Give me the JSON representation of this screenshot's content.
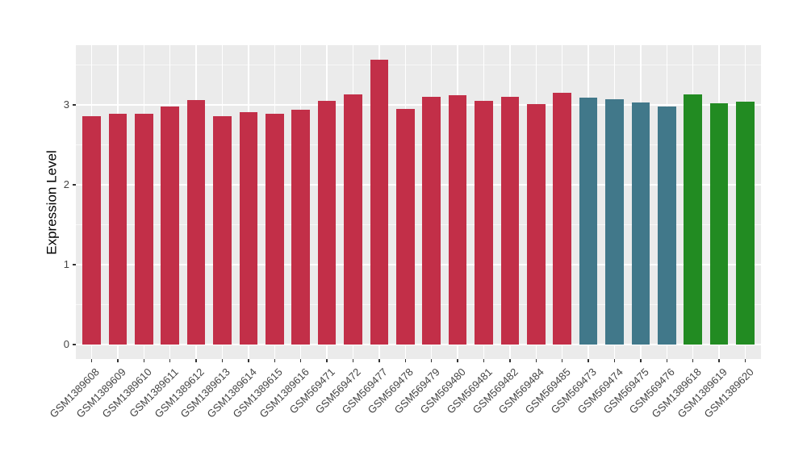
{
  "chart_data": {
    "type": "bar",
    "title": "",
    "xlabel": "",
    "ylabel": "Expression Level",
    "ylim": [
      -0.18,
      3.75
    ],
    "yticks": [
      0,
      1,
      2,
      3
    ],
    "yticks_minor": [
      0.5,
      1.5,
      2.5,
      3.5
    ],
    "grid": "white major gridlines at y ticks and category centers, thin white minor gridlines at 0.5 steps, gray panel",
    "legend": "none",
    "panel_bg": "#EBEBEB",
    "grid_color": "#FFFFFF",
    "axis_text_color": "#444444",
    "axis_title_color": "#000000",
    "categories": [
      "GSM1389608",
      "GSM1389609",
      "GSM1389610",
      "GSM1389611",
      "GSM1389612",
      "GSM1389613",
      "GSM1389614",
      "GSM1389615",
      "GSM1389616",
      "GSM569471",
      "GSM569472",
      "GSM569477",
      "GSM569478",
      "GSM569479",
      "GSM569480",
      "GSM569481",
      "GSM569482",
      "GSM569484",
      "GSM569485",
      "GSM569473",
      "GSM569474",
      "GSM569475",
      "GSM569476",
      "GSM1389618",
      "GSM1389619",
      "GSM1389620"
    ],
    "values": [
      2.86,
      2.89,
      2.89,
      2.98,
      3.06,
      2.86,
      2.91,
      2.89,
      2.94,
      3.05,
      3.13,
      3.57,
      2.95,
      3.1,
      3.12,
      3.05,
      3.1,
      3.01,
      3.15,
      3.09,
      3.07,
      3.03,
      2.98,
      3.13,
      3.02,
      3.04
    ],
    "bar_colors": [
      "#C22F48",
      "#C22F48",
      "#C22F48",
      "#C22F48",
      "#C22F48",
      "#C22F48",
      "#C22F48",
      "#C22F48",
      "#C22F48",
      "#C22F48",
      "#C22F48",
      "#C22F48",
      "#C22F48",
      "#C22F48",
      "#C22F48",
      "#C22F48",
      "#C22F48",
      "#C22F48",
      "#C22F48",
      "#41788A",
      "#41788A",
      "#41788A",
      "#41788A",
      "#228B22",
      "#228B22",
      "#228B22"
    ],
    "color_groups": {
      "crimson": "#C22F48",
      "teal": "#41788A",
      "green": "#228B22"
    }
  }
}
